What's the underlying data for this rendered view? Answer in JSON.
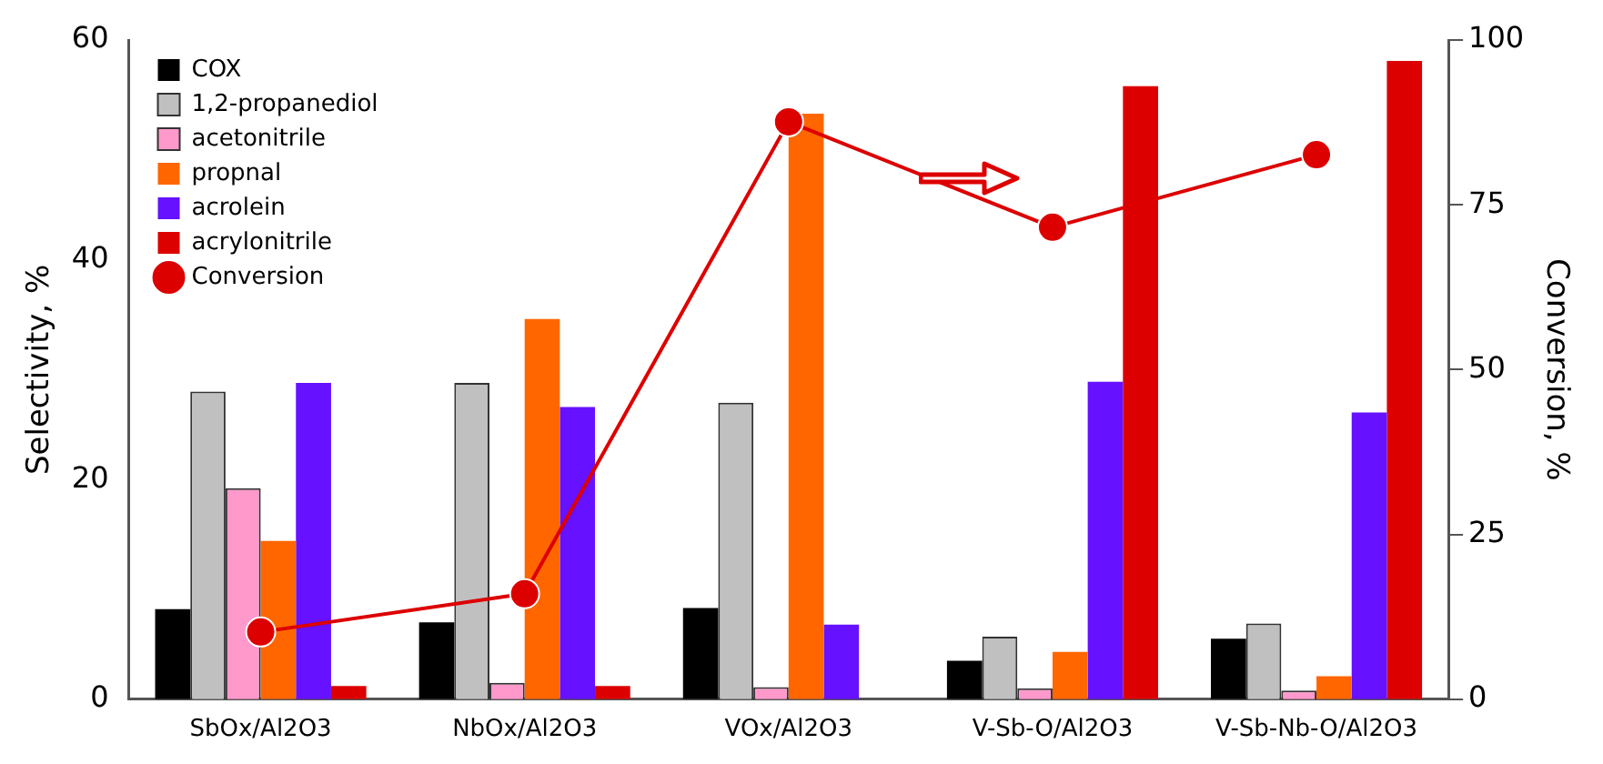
{
  "chart_data": {
    "type": "bar",
    "categories": [
      "SbOx/Al2O3",
      "NbOx/Al2O3",
      "VOx/Al2O3",
      "V-Sb-O/Al2O3",
      "V-Sb-Nb-O/Al2O3"
    ],
    "ylabel": "Selectivity, %",
    "y2label": "Conversion, %",
    "ylim": [
      0,
      60
    ],
    "yticks": [
      0,
      20,
      40,
      60
    ],
    "y2lim": [
      0,
      100
    ],
    "y2ticks": [
      0,
      25,
      50,
      75,
      100
    ],
    "grid": false,
    "legend": "top left",
    "marker": "circle",
    "series": [
      {
        "name": "COX",
        "color": "#000000",
        "values": [
          8.2,
          7.0,
          8.3,
          3.5,
          5.5
        ]
      },
      {
        "name": "1,2-propanediol",
        "color": "#c0c0c0",
        "values": [
          28.0,
          28.8,
          27.0,
          5.7,
          6.9
        ]
      },
      {
        "name": "acetonitrile",
        "color": "#ff99cc",
        "values": [
          19.2,
          1.5,
          1.1,
          1.0,
          0.8
        ]
      },
      {
        "name": "propnal",
        "color": "#ff6600",
        "values": [
          14.4,
          34.6,
          53.3,
          4.3,
          2.1
        ]
      },
      {
        "name": "acrolein",
        "color": "#6611ff",
        "values": [
          28.8,
          26.6,
          6.8,
          28.9,
          26.1
        ]
      },
      {
        "name": "acrylonitrile",
        "color": "#dd0000",
        "values": [
          1.2,
          1.2,
          0,
          55.8,
          58.1
        ]
      },
      {
        "name": "Conversion",
        "type": "line",
        "axis": "y2",
        "color": "#dd0000",
        "values": [
          10.2,
          16.0,
          87.6,
          71.6,
          82.6
        ]
      }
    ]
  }
}
